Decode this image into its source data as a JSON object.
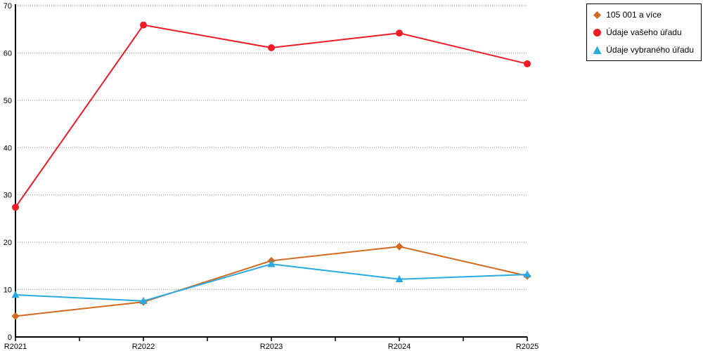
{
  "chart_data": {
    "type": "line",
    "categories": [
      "R2021",
      "R2022",
      "R2023",
      "R2024",
      "R2025"
    ],
    "series": [
      {
        "name": "105 001 a více",
        "color": "#D2691E",
        "marker": "diamond",
        "values": [
          4.4,
          7.4,
          16.1,
          19.1,
          12.9
        ]
      },
      {
        "name": "Údaje vašeho úřadu",
        "color": "#EE1C25",
        "marker": "circle",
        "values": [
          27.4,
          65.9,
          61.1,
          64.2,
          57.7
        ]
      },
      {
        "name": "Údaje vybraného úřadu",
        "color": "#29ABE2",
        "marker": "triangle",
        "values": [
          8.9,
          7.6,
          15.4,
          12.2,
          13.2
        ]
      }
    ],
    "title": "",
    "xlabel": "",
    "ylabel": "",
    "ylim": [
      0,
      70
    ],
    "ytick_step": 10,
    "yticks": [
      0,
      10,
      20,
      30,
      40,
      50,
      60,
      70
    ],
    "grid": "dotted-horizontal",
    "grid_color": "#909090",
    "axis_color": "#000000",
    "legend_position": "top-right"
  }
}
